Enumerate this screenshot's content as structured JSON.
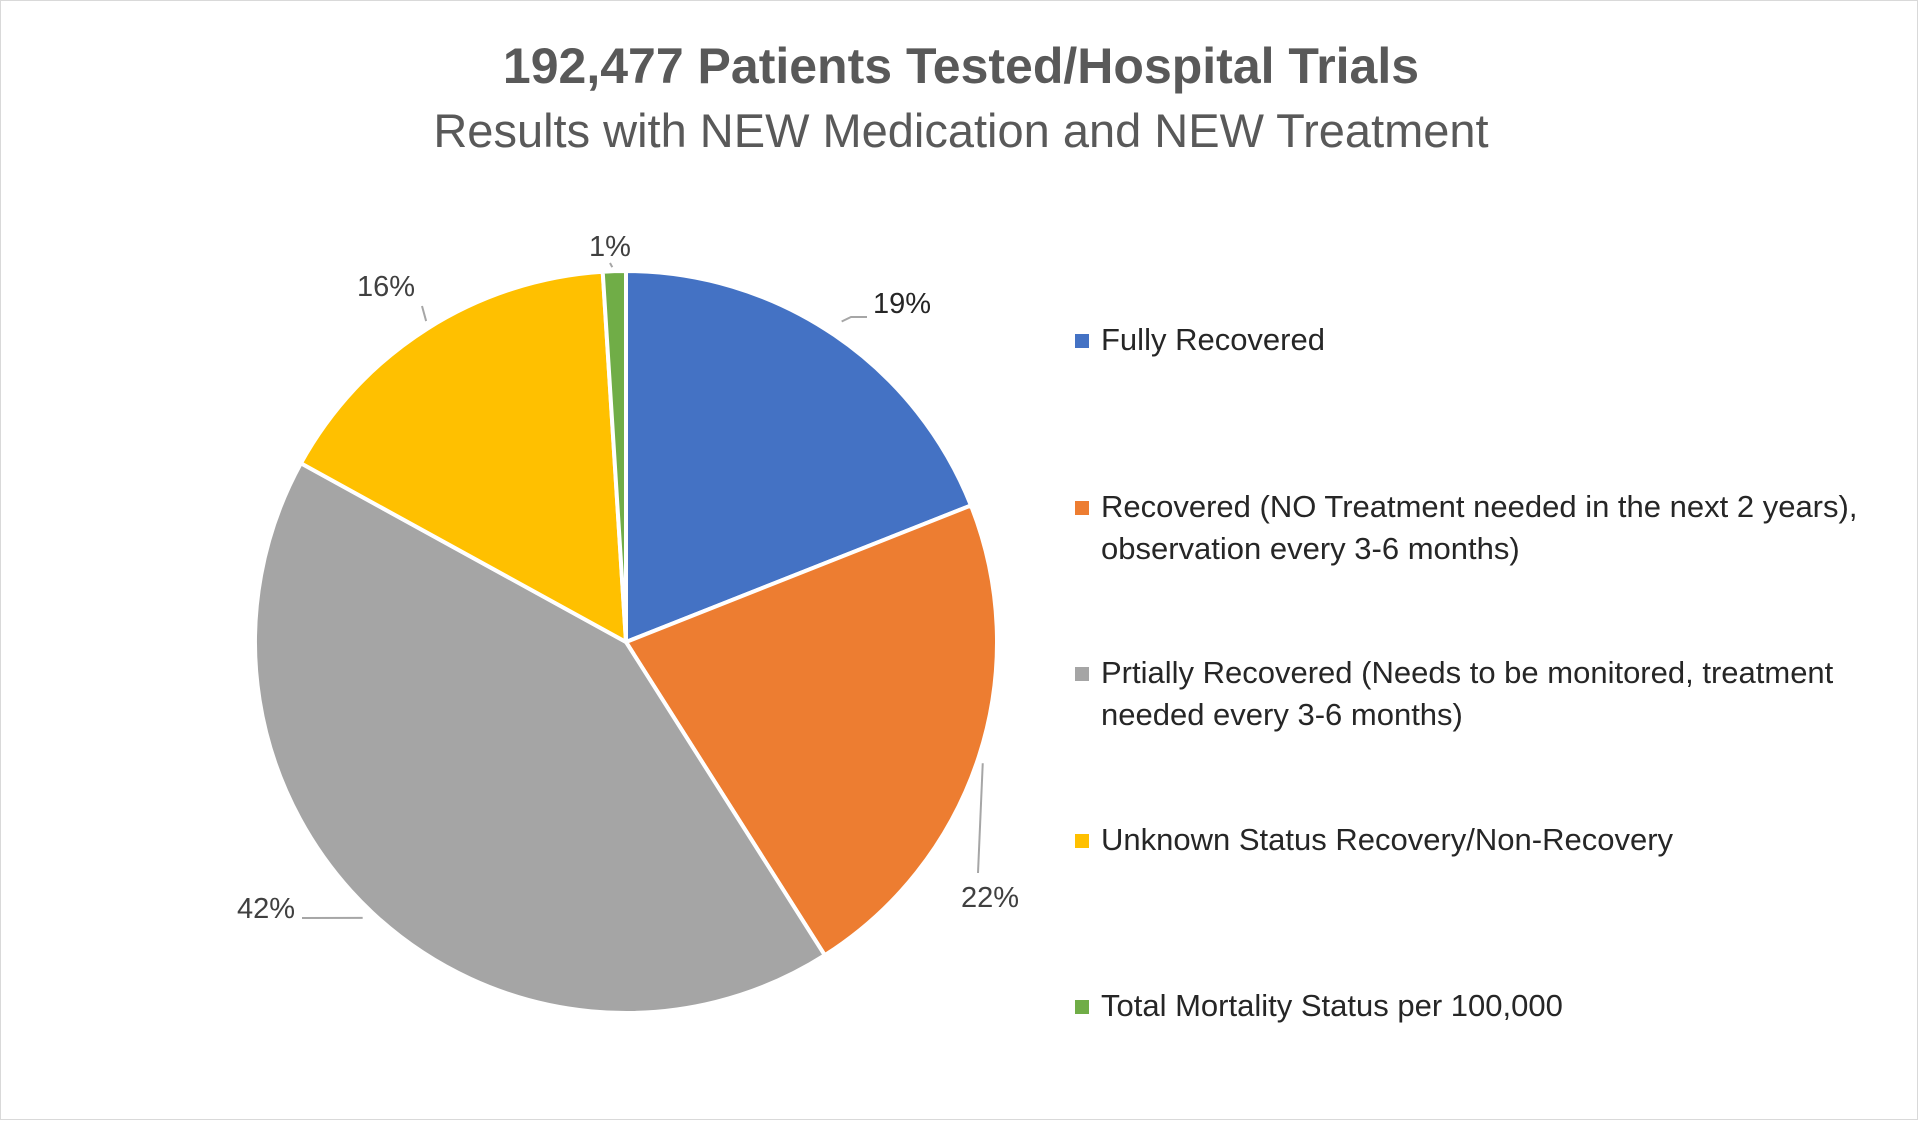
{
  "chart_data": {
    "type": "pie",
    "title": "192,477 Patients Tested/Hospital Trials",
    "subtitle": "Results with NEW Medication and NEW Treatment",
    "legend_position": "right",
    "slices": [
      {
        "label": "Fully Recovered",
        "value": 19,
        "display": "19%",
        "color": "#4472C4"
      },
      {
        "label": "Recovered (NO Treatment needed in the next 2 years), observation every 3-6 months)",
        "value": 22,
        "display": "22%",
        "color": "#ED7D31"
      },
      {
        "label": "Prtially Recovered (Needs to be monitored, treatment needed every 3-6 months)",
        "value": 42,
        "display": "42%",
        "color": "#A5A5A5"
      },
      {
        "label": "Unknown Status Recovery/Non-Recovery",
        "value": 16,
        "display": "16%",
        "color": "#FFC000"
      },
      {
        "label": "Total Mortality Status per 100,000",
        "value": 1,
        "display": "1%",
        "color": "#70AD47"
      }
    ]
  }
}
